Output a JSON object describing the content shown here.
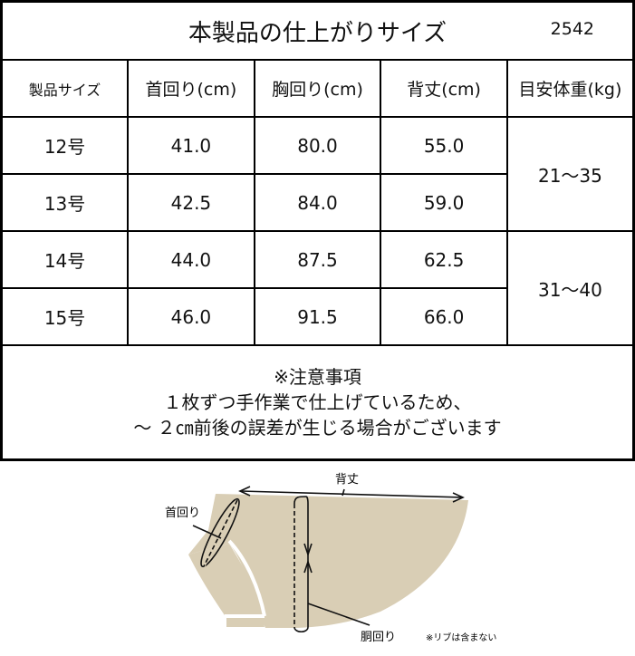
{
  "title": "本製品の仕上がりサイズ",
  "code": "2542",
  "headers": [
    "製品サイズ",
    "首回り(cm)",
    "胸回り(cm)",
    "背丈(cm)",
    "目安体重(kg)"
  ],
  "rows": [
    {
      "size": "12号",
      "neck": "41.0",
      "chest": "80.0",
      "back": "55.0"
    },
    {
      "size": "13号",
      "neck": "42.5",
      "chest": "84.0",
      "back": "59.0"
    },
    {
      "size": "14号",
      "neck": "44.0",
      "chest": "87.5",
      "back": "62.5"
    },
    {
      "size": "15号",
      "neck": "46.0",
      "chest": "91.5",
      "back": "66.0"
    }
  ],
  "weights": [
    "21～35",
    "31～40"
  ],
  "notes": [
    "※注意事項",
    "１枚ずつ手作業で仕上げているため、",
    "～ ２㎝前後の誤差が生じる場合がございます"
  ],
  "diagram": {
    "back_label": "背丈",
    "neck_label": "首回り",
    "chest_label": "胴回り",
    "rib_note": "※リブは含まない",
    "fabric_color": "#d9ceb5"
  }
}
